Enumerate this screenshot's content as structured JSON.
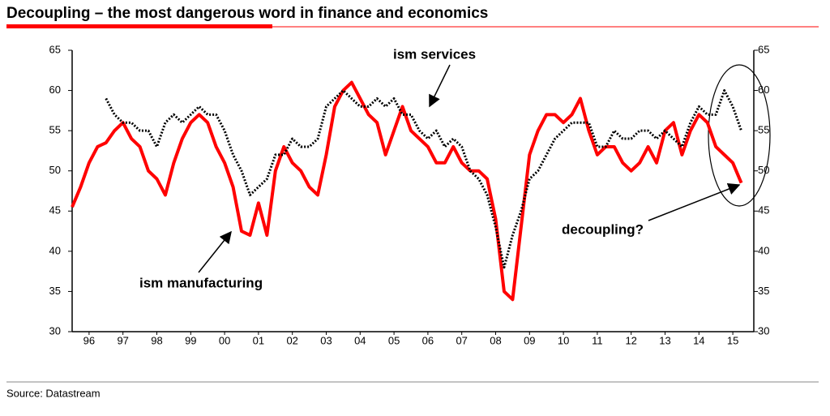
{
  "chart_data": {
    "type": "line",
    "title": "Decoupling – the most dangerous word in finance and economics",
    "source": "Source: Datastream",
    "annotations": [
      "ism services",
      "ism manufacturing",
      "decoupling?"
    ],
    "x": [
      1996,
      1996.25,
      1996.5,
      1996.75,
      1997,
      1997.25,
      1997.5,
      1997.75,
      1998,
      1998.25,
      1998.5,
      1998.75,
      1999,
      1999.25,
      1999.5,
      1999.75,
      2000,
      2000.25,
      2000.5,
      2000.75,
      2001,
      2001.25,
      2001.5,
      2001.75,
      2002,
      2002.25,
      2002.5,
      2002.75,
      2003,
      2003.25,
      2003.5,
      2003.75,
      2004,
      2004.25,
      2004.5,
      2004.75,
      2005,
      2005.25,
      2005.5,
      2005.75,
      2006,
      2006.25,
      2006.5,
      2006.75,
      2007,
      2007.25,
      2007.5,
      2007.75,
      2008,
      2008.25,
      2008.5,
      2008.75,
      2009,
      2009.25,
      2009.5,
      2009.75,
      2010,
      2010.25,
      2010.5,
      2010.75,
      2011,
      2011.25,
      2011.5,
      2011.75,
      2012,
      2012.25,
      2012.5,
      2012.75,
      2013,
      2013.25,
      2013.5,
      2013.75,
      2014,
      2014.25,
      2014.5,
      2014.75,
      2015,
      2015.25,
      2015.5,
      2015.75
    ],
    "series": [
      {
        "name": "ism manufacturing",
        "color": "#ff0000",
        "values": [
          45.5,
          48,
          51,
          53,
          53.5,
          55,
          56,
          54,
          53,
          50,
          49,
          47,
          51,
          54,
          56,
          57,
          56,
          53,
          51,
          48,
          42.5,
          42,
          46,
          42,
          50,
          53,
          51,
          50,
          48,
          47,
          52,
          58,
          60,
          61,
          59,
          57,
          56,
          52,
          55,
          58,
          55,
          54,
          53,
          51,
          51,
          53,
          51,
          50,
          50,
          49,
          44,
          35,
          34,
          43,
          52,
          55,
          57,
          57,
          56,
          57,
          59,
          55,
          52,
          53,
          53,
          51,
          50,
          51,
          53,
          51,
          55,
          56,
          52,
          55,
          57,
          56,
          53,
          52,
          51,
          48.5
        ]
      },
      {
        "name": "ism services",
        "color": "#000000",
        "values": [
          null,
          null,
          null,
          null,
          59,
          57,
          56,
          56,
          55,
          55,
          53,
          56,
          57,
          56,
          57,
          58,
          57,
          57,
          55,
          52,
          50,
          47,
          48,
          49,
          52,
          52,
          54,
          53,
          53,
          54,
          58,
          59,
          60,
          59,
          58,
          58,
          59,
          58,
          59,
          57,
          57,
          55,
          54,
          55,
          53,
          54,
          53,
          50,
          49,
          47,
          43,
          38,
          42,
          45,
          49,
          50,
          52,
          54,
          55,
          56,
          56,
          56,
          53,
          53,
          55,
          54,
          54,
          55,
          55,
          54,
          55,
          54,
          53,
          56,
          58,
          57,
          57,
          60,
          58,
          55
        ]
      }
    ],
    "xlim": [
      1996,
      2016
    ],
    "xticks": [
      {
        "value": 1996.5,
        "label": "96"
      },
      {
        "value": 1997.5,
        "label": "97"
      },
      {
        "value": 1998.5,
        "label": "98"
      },
      {
        "value": 1999.5,
        "label": "99"
      },
      {
        "value": 2000.5,
        "label": "00"
      },
      {
        "value": 2001.5,
        "label": "01"
      },
      {
        "value": 2002.5,
        "label": "02"
      },
      {
        "value": 2003.5,
        "label": "03"
      },
      {
        "value": 2004.5,
        "label": "04"
      },
      {
        "value": 2005.5,
        "label": "05"
      },
      {
        "value": 2006.5,
        "label": "06"
      },
      {
        "value": 2007.5,
        "label": "07"
      },
      {
        "value": 2008.5,
        "label": "08"
      },
      {
        "value": 2009.5,
        "label": "09"
      },
      {
        "value": 2010.5,
        "label": "10"
      },
      {
        "value": 2011.5,
        "label": "11"
      },
      {
        "value": 2012.5,
        "label": "12"
      },
      {
        "value": 2013.5,
        "label": "13"
      },
      {
        "value": 2014.5,
        "label": "14"
      },
      {
        "value": 2015.5,
        "label": "15"
      }
    ],
    "ylim": [
      30,
      65
    ],
    "yticks": [
      30,
      35,
      40,
      45,
      50,
      55,
      60,
      65
    ],
    "y2lim": [
      30,
      65
    ],
    "y2ticks": [
      30,
      35,
      40,
      45,
      50,
      55,
      60,
      65
    ]
  }
}
